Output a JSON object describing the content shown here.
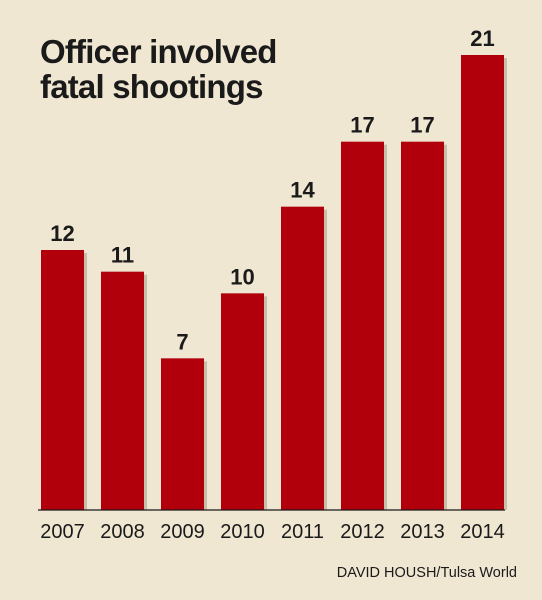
{
  "chart_data": {
    "type": "bar",
    "title_lines": [
      "Officer involved",
      "fatal shootings"
    ],
    "categories": [
      "2007",
      "2008",
      "2009",
      "2010",
      "2011",
      "2012",
      "2013",
      "2014"
    ],
    "values": [
      12,
      11,
      7,
      10,
      14,
      17,
      17,
      21
    ],
    "ylim": [
      0,
      21
    ],
    "grid": false,
    "bar_color": "#b1000c",
    "background_color": "#efe7d2",
    "credit": "DAVID HOUSH/Tulsa World"
  }
}
